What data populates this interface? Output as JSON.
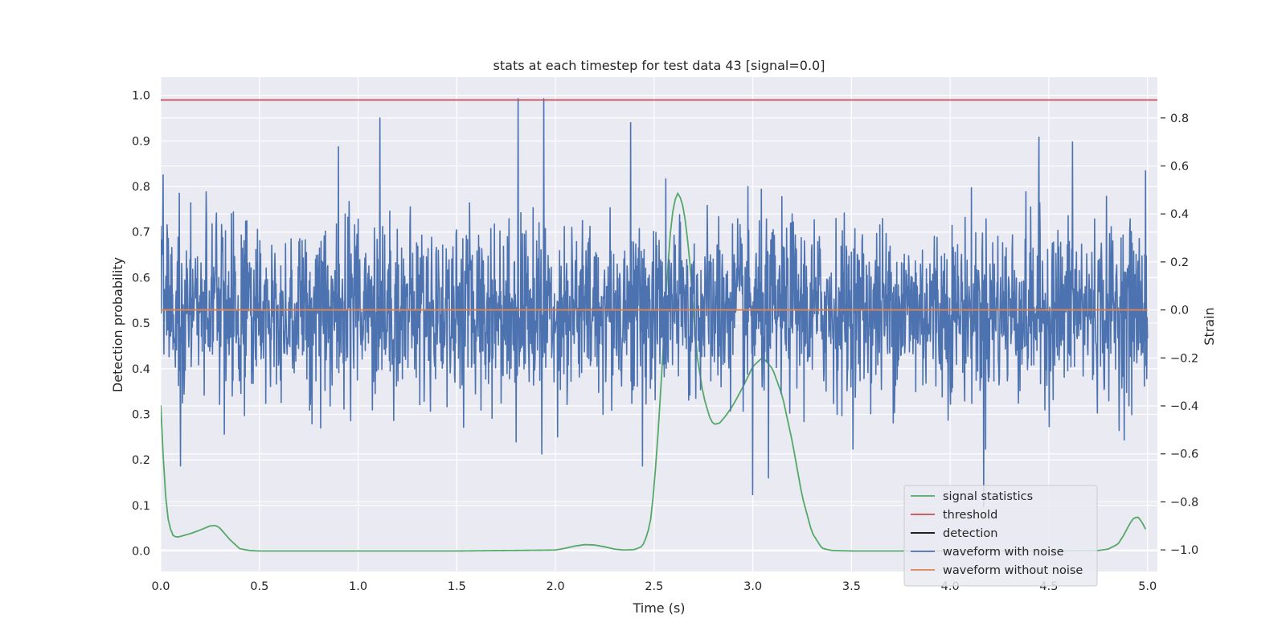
{
  "chart_data": {
    "type": "line",
    "title": "stats at each timestep for test data 43 [signal=0.0]",
    "xlabel": "Time (s)",
    "ylabel": "Detection probability",
    "ylabel_right": "Strain",
    "xlim": [
      0.0,
      5.05
    ],
    "ylim": [
      -0.045,
      1.04
    ],
    "ylim_right": [
      -1.09,
      0.97
    ],
    "x_ticks": [
      0.0,
      0.5,
      1.0,
      1.5,
      2.0,
      2.5,
      3.0,
      3.5,
      4.0,
      4.5,
      5.0
    ],
    "y_ticks": [
      0.0,
      0.1,
      0.2,
      0.3,
      0.4,
      0.5,
      0.6,
      0.7,
      0.8,
      0.9,
      1.0
    ],
    "y_ticks_right": [
      -1.0,
      -0.8,
      -0.6,
      -0.4,
      -0.2,
      0.0,
      0.2,
      0.4,
      0.6,
      0.8
    ],
    "grid": true,
    "legend_position": "lower-right",
    "series": [
      {
        "name": "signal statistics",
        "axis": "left",
        "color": "#55a868",
        "x": [
          0.0,
          0.02,
          0.04,
          0.06,
          0.08,
          0.1,
          0.15,
          0.2,
          0.25,
          0.28,
          0.3,
          0.35,
          0.4,
          0.45,
          0.5,
          1.0,
          1.5,
          2.0,
          2.05,
          2.1,
          2.15,
          2.2,
          2.25,
          2.3,
          2.35,
          2.4,
          2.44,
          2.46,
          2.48,
          2.5,
          2.52,
          2.54,
          2.56,
          2.58,
          2.6,
          2.62,
          2.64,
          2.66,
          2.68,
          2.7,
          2.72,
          2.75,
          2.78,
          2.8,
          2.83,
          2.86,
          2.9,
          2.95,
          3.0,
          3.05,
          3.1,
          3.15,
          3.2,
          3.25,
          3.3,
          3.35,
          3.4,
          3.5,
          4.0,
          4.5,
          4.75,
          4.8,
          4.85,
          4.88,
          4.91,
          4.93,
          4.95,
          4.97,
          4.99
        ],
        "values": [
          0.32,
          0.14,
          0.06,
          0.035,
          0.03,
          0.032,
          0.038,
          0.046,
          0.055,
          0.056,
          0.05,
          0.025,
          0.005,
          0.001,
          0.0,
          0.0,
          0.0,
          0.002,
          0.006,
          0.011,
          0.014,
          0.013,
          0.009,
          0.004,
          0.002,
          0.003,
          0.01,
          0.03,
          0.06,
          0.14,
          0.26,
          0.4,
          0.56,
          0.69,
          0.765,
          0.785,
          0.77,
          0.72,
          0.64,
          0.52,
          0.42,
          0.34,
          0.295,
          0.278,
          0.28,
          0.295,
          0.32,
          0.36,
          0.405,
          0.425,
          0.4,
          0.34,
          0.24,
          0.12,
          0.04,
          0.006,
          0.001,
          0.0,
          0.0,
          0.0,
          0.001,
          0.004,
          0.015,
          0.035,
          0.06,
          0.072,
          0.075,
          0.065,
          0.048
        ]
      },
      {
        "name": "threshold",
        "axis": "left",
        "color": "#c44e52",
        "x": [
          0.0,
          5.05
        ],
        "values": [
          0.99,
          0.99
        ]
      },
      {
        "name": "detection",
        "axis": "left",
        "color": "#000000",
        "x": [],
        "values": []
      },
      {
        "name": "waveform with noise",
        "axis": "right",
        "color": "#4c72b0",
        "x": [
          0.0,
          0.1,
          0.28,
          0.9,
          1.11,
          1.8,
          1.81,
          1.93,
          1.94,
          2.38,
          2.44,
          3.0,
          3.08,
          3.2,
          4.17,
          4.45,
          4.62,
          4.99
        ],
        "values": [
          0.35,
          -0.65,
          0.35,
          0.68,
          0.8,
          -0.55,
          0.88,
          -0.6,
          0.88,
          0.78,
          -0.65,
          -0.77,
          -0.7,
          0.4,
          -0.82,
          0.72,
          0.7,
          0.58
        ],
        "noise_std": 0.18,
        "samples": 2500
      },
      {
        "name": "waveform without noise",
        "axis": "right",
        "color": "#dd8452",
        "x": [
          0.0,
          5.0
        ],
        "values": [
          0.0,
          0.0
        ]
      }
    ]
  }
}
